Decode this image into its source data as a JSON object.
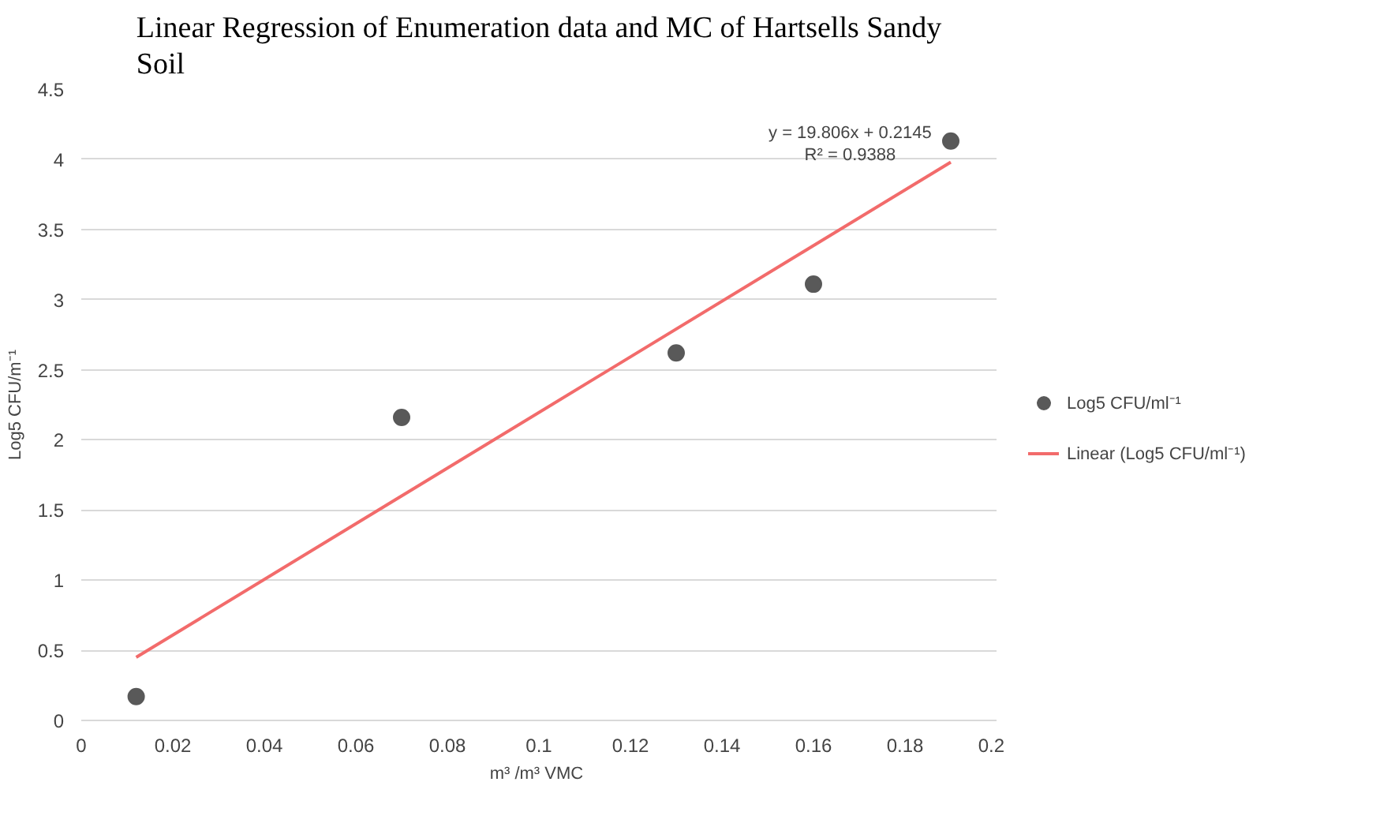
{
  "chart_data": {
    "type": "scatter",
    "title": "Linear Regression of Enumeration data and MC of Hartsells Sandy Soil",
    "xlabel": "m³ /m³  VMC",
    "ylabel": "Log5 CFU/m⁻¹",
    "series": [
      {
        "name": "Log5 CFU/ml⁻¹",
        "marker": "circle",
        "color": "#595959",
        "x": [
          0.012,
          0.07,
          0.13,
          0.16,
          0.19
        ],
        "values": [
          0.17,
          2.16,
          2.62,
          3.11,
          4.13
        ]
      },
      {
        "name": "Linear (Log5 CFU/ml⁻¹)",
        "type": "line",
        "color": "#f26b6b",
        "x": [
          0.012,
          0.19
        ],
        "values": [
          0.45,
          3.98
        ]
      }
    ],
    "annotations": [
      "y = 19.806x + 0.2145",
      "R² = 0.9388"
    ],
    "xlim": [
      0,
      0.2
    ],
    "xticks": [
      0,
      0.02,
      0.04,
      0.06,
      0.08,
      0.1,
      0.12,
      0.14,
      0.16,
      0.18,
      0.2
    ],
    "ylim": [
      0,
      4.5
    ],
    "yticks": [
      0,
      0.5,
      1,
      1.5,
      2,
      2.5,
      3,
      3.5,
      4,
      4.5
    ],
    "grid": "y",
    "legend": "right"
  }
}
